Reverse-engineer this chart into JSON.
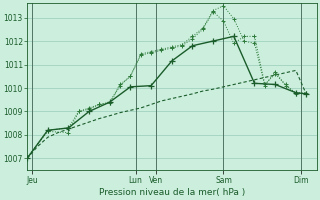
{
  "xlabel": "Pression niveau de la mer( hPa )",
  "bg_color": "#cceedd",
  "grid_color": "#99ccbb",
  "line_color_dark": "#1a5c2a",
  "line_color_light": "#2d7a3a",
  "ylim": [
    1006.5,
    1013.6
  ],
  "yticks": [
    1007,
    1008,
    1009,
    1010,
    1011,
    1012,
    1013
  ],
  "xlim": [
    0,
    28
  ],
  "day_labels": [
    "Jeu",
    "Lun",
    "Ven",
    "Sam",
    "Dim"
  ],
  "day_positions": [
    0.5,
    10.5,
    12.5,
    19.0,
    26.5
  ],
  "vline_positions": [
    0.5,
    10.5,
    12.5,
    19.0,
    26.5
  ],
  "series_smooth": {
    "x": [
      0,
      1,
      2,
      3,
      4,
      5,
      6,
      7,
      8,
      9,
      10,
      11,
      12,
      13,
      14,
      15,
      16,
      17,
      18,
      19,
      20,
      21,
      22,
      23,
      24,
      25,
      26,
      27
    ],
    "y": [
      1007.0,
      1007.5,
      1007.9,
      1008.1,
      1008.25,
      1008.4,
      1008.55,
      1008.7,
      1008.82,
      1008.95,
      1009.05,
      1009.15,
      1009.3,
      1009.45,
      1009.55,
      1009.65,
      1009.75,
      1009.87,
      1009.95,
      1010.05,
      1010.15,
      1010.25,
      1010.35,
      1010.45,
      1010.55,
      1010.65,
      1010.75,
      1009.75
    ]
  },
  "series_dotted1": {
    "x": [
      0,
      2,
      4,
      5,
      6,
      7,
      8,
      9,
      10,
      11,
      12,
      13,
      14,
      15,
      16,
      17,
      18,
      19,
      20,
      21,
      22,
      23,
      24,
      25,
      26,
      27
    ],
    "y": [
      1007.0,
      1008.2,
      1008.3,
      1009.0,
      1009.15,
      1009.3,
      1009.4,
      1010.15,
      1010.5,
      1011.45,
      1011.55,
      1011.65,
      1011.75,
      1011.85,
      1012.2,
      1012.55,
      1013.3,
      1013.5,
      1012.95,
      1012.0,
      1011.9,
      1010.1,
      1010.7,
      1010.1,
      1009.8,
      1009.8
    ]
  },
  "series_dotted2": {
    "x": [
      0,
      2,
      4,
      5,
      6,
      7,
      8,
      9,
      10,
      11,
      12,
      13,
      14,
      15,
      16,
      17,
      18,
      19,
      20,
      21,
      22,
      23,
      24,
      25,
      26,
      27
    ],
    "y": [
      1007.0,
      1008.15,
      1008.1,
      1009.0,
      1009.1,
      1009.3,
      1009.35,
      1010.1,
      1010.5,
      1011.4,
      1011.5,
      1011.6,
      1011.7,
      1011.8,
      1012.1,
      1012.5,
      1013.25,
      1012.85,
      1011.9,
      1012.2,
      1012.2,
      1010.15,
      1010.6,
      1010.15,
      1009.75,
      1009.75
    ]
  },
  "series_solid": {
    "x": [
      0,
      2,
      4,
      6,
      8,
      10,
      12,
      14,
      16,
      18,
      20,
      22,
      24,
      26,
      27
    ],
    "y": [
      1007.0,
      1008.2,
      1008.3,
      1009.0,
      1009.4,
      1010.05,
      1010.1,
      1011.15,
      1011.8,
      1012.0,
      1012.2,
      1010.2,
      1010.15,
      1009.8,
      1009.75
    ]
  }
}
